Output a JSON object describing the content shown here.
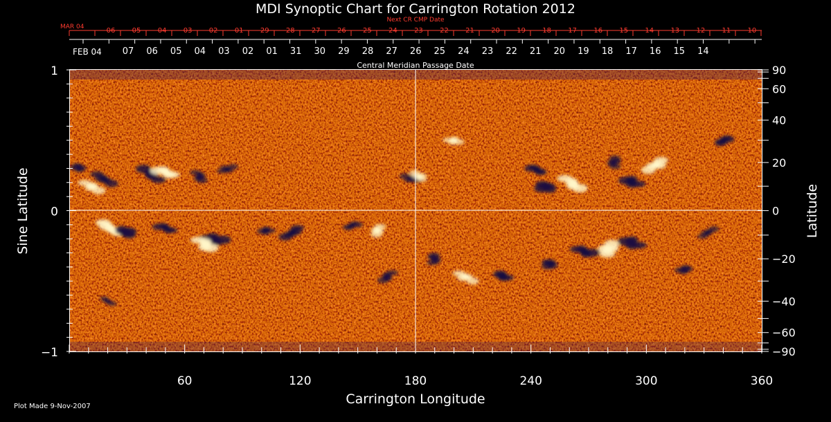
{
  "chart_data": {
    "type": "heatmap",
    "title": "MDI Synoptic Chart for Carrington Rotation 2012",
    "xlabel": "Carrington Longitude",
    "ylabel_left": "Sine Latitude",
    "ylabel_right": "Latitude",
    "xlim": [
      0,
      360
    ],
    "ylim_sine": [
      -1,
      1
    ],
    "x_ticks": [
      60,
      120,
      180,
      240,
      300,
      360
    ],
    "left_ticks": [
      "1",
      "0",
      "−1"
    ],
    "right_ticks": [
      90,
      60,
      40,
      20,
      0,
      -20,
      -40,
      -60,
      -90
    ],
    "top_red_label": "Next CR CMP Date",
    "top_red_first": "MAR 04",
    "top_red_dates": [
      "06",
      "05",
      "04",
      "03",
      "02",
      "01",
      "29",
      "28",
      "27",
      "26",
      "25",
      "24",
      "23",
      "22",
      "21",
      "20",
      "19",
      "18",
      "17",
      "16",
      "15",
      "14",
      "13",
      "12",
      "11",
      "10"
    ],
    "top_white_first": "FEB 04",
    "top_white_dates": [
      "07",
      "06",
      "05",
      "04",
      "03",
      "02",
      "01",
      "31",
      "30",
      "29",
      "28",
      "27",
      "26",
      "25",
      "24",
      "23",
      "22",
      "21",
      "20",
      "19",
      "18",
      "17",
      "16",
      "15",
      "14"
    ],
    "axis_title_top": "Central Meridian Passage Date",
    "footer": "Plot Made  9-Nov-2007",
    "colors": {
      "background": "#000000",
      "field": "#ff5a14",
      "positive": "#fff6c8",
      "negative": "#1a0f40",
      "accent_red": "#ff3b2f"
    },
    "regions": [
      {
        "lon": 5,
        "lat": 18,
        "polarity": "negative",
        "strength": 0.6
      },
      {
        "lon": 18,
        "lat": 13,
        "polarity": "negative",
        "strength": 0.8
      },
      {
        "lon": 12,
        "lat": 10,
        "polarity": "positive",
        "strength": 0.8
      },
      {
        "lon": 42,
        "lat": 15,
        "polarity": "negative",
        "strength": 1.0
      },
      {
        "lon": 50,
        "lat": 16,
        "polarity": "positive",
        "strength": 0.9
      },
      {
        "lon": 68,
        "lat": 14,
        "polarity": "negative",
        "strength": 0.6
      },
      {
        "lon": 82,
        "lat": 17,
        "polarity": "negative",
        "strength": 0.5
      },
      {
        "lon": 21,
        "lat": -7,
        "polarity": "positive",
        "strength": 1.0
      },
      {
        "lon": 29,
        "lat": -9,
        "polarity": "negative",
        "strength": 1.0
      },
      {
        "lon": 50,
        "lat": -7,
        "polarity": "negative",
        "strength": 0.7
      },
      {
        "lon": 76,
        "lat": -12,
        "polarity": "negative",
        "strength": 1.0
      },
      {
        "lon": 71,
        "lat": -14,
        "polarity": "positive",
        "strength": 1.0
      },
      {
        "lon": 116,
        "lat": -9,
        "polarity": "negative",
        "strength": 0.8
      },
      {
        "lon": 102,
        "lat": -8,
        "polarity": "negative",
        "strength": 0.5
      },
      {
        "lon": 147,
        "lat": -6,
        "polarity": "negative",
        "strength": 0.5
      },
      {
        "lon": 160,
        "lat": -8,
        "polarity": "positive",
        "strength": 0.6
      },
      {
        "lon": 178,
        "lat": 13,
        "polarity": "negative",
        "strength": 0.6
      },
      {
        "lon": 182,
        "lat": 14,
        "polarity": "positive",
        "strength": 0.5
      },
      {
        "lon": 248,
        "lat": 10,
        "polarity": "negative",
        "strength": 1.0
      },
      {
        "lon": 262,
        "lat": 11,
        "polarity": "positive",
        "strength": 1.0
      },
      {
        "lon": 243,
        "lat": 17,
        "polarity": "negative",
        "strength": 0.7
      },
      {
        "lon": 292,
        "lat": 12,
        "polarity": "negative",
        "strength": 0.9
      },
      {
        "lon": 305,
        "lat": 19,
        "polarity": "positive",
        "strength": 0.9
      },
      {
        "lon": 283,
        "lat": 20,
        "polarity": "negative",
        "strength": 0.6
      },
      {
        "lon": 340,
        "lat": 30,
        "polarity": "negative",
        "strength": 0.7
      },
      {
        "lon": 280,
        "lat": -16,
        "polarity": "positive",
        "strength": 1.0
      },
      {
        "lon": 292,
        "lat": -13,
        "polarity": "negative",
        "strength": 1.0
      },
      {
        "lon": 268,
        "lat": -17,
        "polarity": "negative",
        "strength": 0.9
      },
      {
        "lon": 250,
        "lat": -22,
        "polarity": "negative",
        "strength": 0.7
      },
      {
        "lon": 225,
        "lat": -28,
        "polarity": "negative",
        "strength": 0.8
      },
      {
        "lon": 206,
        "lat": -28,
        "polarity": "positive",
        "strength": 0.7
      },
      {
        "lon": 190,
        "lat": -20,
        "polarity": "negative",
        "strength": 0.6
      },
      {
        "lon": 165,
        "lat": -28,
        "polarity": "negative",
        "strength": 0.6
      },
      {
        "lon": 320,
        "lat": -25,
        "polarity": "negative",
        "strength": 0.6
      },
      {
        "lon": 332,
        "lat": -9,
        "polarity": "negative",
        "strength": 0.5
      },
      {
        "lon": 20,
        "lat": -40,
        "polarity": "negative",
        "strength": 0.3
      },
      {
        "lon": 200,
        "lat": 30,
        "polarity": "positive",
        "strength": 0.5
      }
    ]
  }
}
